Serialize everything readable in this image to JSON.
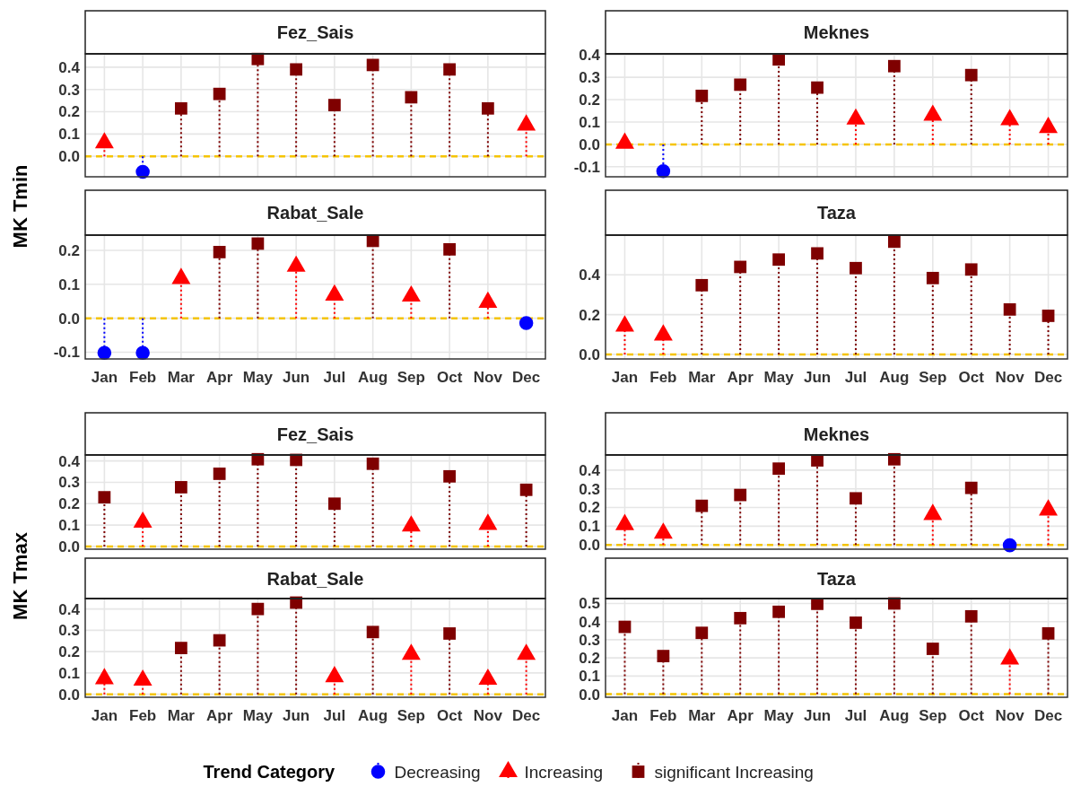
{
  "chart_data": [
    {
      "type": "lollipop",
      "title": "Fez_Sais",
      "ylabel": "MK Tmin",
      "categories": [
        null,
        null,
        null,
        null,
        null,
        null,
        null,
        null,
        null,
        null,
        null,
        null
      ],
      "ylim": [
        -0.092,
        0.46
      ],
      "yticks": [
        {
          "value": 0,
          "label": "0.0"
        },
        {
          "value": 0.1,
          "label": "0.1"
        },
        {
          "value": 0.2,
          "label": "0.2"
        },
        {
          "value": 0.3,
          "label": "0.3"
        },
        {
          "value": 0.4,
          "label": "0.4"
        }
      ],
      "grid": true,
      "line_style": "dotted",
      "legend": "bottom",
      "legend_title": "Trend Category",
      "ref_lines": [
        {
          "axis": "y",
          "value": 0,
          "color": "#f5c400",
          "line_style": "dashed"
        }
      ],
      "series": [
        {
          "name": "Decreasing",
          "color": "#0000ff",
          "marker": "circle",
          "values": [
            null,
            -0.07,
            null,
            null,
            null,
            null,
            null,
            null,
            null,
            null,
            null,
            null
          ]
        },
        {
          "name": "Increasing",
          "color": "#ff0000",
          "marker": "triangle",
          "values": [
            0.06,
            null,
            null,
            null,
            null,
            null,
            null,
            null,
            null,
            null,
            null,
            0.14
          ]
        },
        {
          "name": "significant Increasing",
          "color": "#7f0000",
          "marker": "square",
          "values": [
            null,
            null,
            0.215,
            0.28,
            0.437,
            0.39,
            0.23,
            0.41,
            0.265,
            0.39,
            0.215,
            null
          ]
        }
      ]
    },
    {
      "type": "lollipop",
      "title": "Meknes",
      "categories": [
        null,
        null,
        null,
        null,
        null,
        null,
        null,
        null,
        null,
        null,
        null,
        null
      ],
      "ylim": [
        -0.145,
        0.405
      ],
      "yticks": [
        {
          "value": -0.1,
          "label": "-0.1"
        },
        {
          "value": 0,
          "label": "0.0"
        },
        {
          "value": 0.1,
          "label": "0.1"
        },
        {
          "value": 0.2,
          "label": "0.2"
        },
        {
          "value": 0.3,
          "label": "0.3"
        },
        {
          "value": 0.4,
          "label": "0.4"
        }
      ],
      "grid": true,
      "line_style": "dotted",
      "ref_lines": [
        {
          "axis": "y",
          "value": 0,
          "color": "#f5c400",
          "line_style": "dashed"
        }
      ],
      "series": [
        {
          "name": "Decreasing",
          "color": "#0000ff",
          "marker": "circle",
          "values": [
            null,
            -0.12,
            null,
            null,
            null,
            null,
            null,
            null,
            null,
            null,
            null,
            null
          ]
        },
        {
          "name": "Increasing",
          "color": "#ff0000",
          "marker": "triangle",
          "values": [
            0.005,
            null,
            null,
            null,
            null,
            null,
            0.113,
            null,
            0.13,
            null,
            0.11,
            0.075
          ]
        },
        {
          "name": "significant Increasing",
          "color": "#7f0000",
          "marker": "square",
          "values": [
            null,
            null,
            0.217,
            0.267,
            0.38,
            0.254,
            null,
            0.35,
            null,
            0.31,
            null,
            null
          ]
        }
      ]
    },
    {
      "type": "lollipop",
      "title": "Rabat_Sale",
      "categories": [
        "Jan",
        "Feb",
        "Mar",
        "Apr",
        "May",
        "Jun",
        "Jul",
        "Aug",
        "Sep",
        "Oct",
        "Nov",
        "Dec"
      ],
      "ylim": [
        -0.12,
        0.245
      ],
      "yticks": [
        {
          "value": -0.1,
          "label": "-0.1"
        },
        {
          "value": 0,
          "label": "0.0"
        },
        {
          "value": 0.1,
          "label": "0.1"
        },
        {
          "value": 0.2,
          "label": "0.2"
        }
      ],
      "grid": true,
      "line_style": "dotted",
      "ref_lines": [
        {
          "axis": "y",
          "value": 0,
          "color": "#f5c400",
          "line_style": "dashed"
        }
      ],
      "series": [
        {
          "name": "Decreasing",
          "color": "#0000ff",
          "marker": "circle",
          "values": [
            -0.102,
            -0.102,
            null,
            null,
            null,
            null,
            null,
            null,
            null,
            null,
            null,
            -0.014
          ]
        },
        {
          "name": "Increasing",
          "color": "#ff0000",
          "marker": "triangle",
          "values": [
            null,
            null,
            0.117,
            null,
            null,
            0.153,
            0.068,
            null,
            0.065,
            null,
            0.047,
            null
          ]
        },
        {
          "name": "significant Increasing",
          "color": "#7f0000",
          "marker": "square",
          "values": [
            null,
            null,
            null,
            0.195,
            0.22,
            null,
            null,
            0.228,
            null,
            0.203,
            null,
            null
          ]
        }
      ]
    },
    {
      "type": "lollipop",
      "title": "Taza",
      "categories": [
        "Jan",
        "Feb",
        "Mar",
        "Apr",
        "May",
        "Jun",
        "Jul",
        "Aug",
        "Sep",
        "Oct",
        "Nov",
        "Dec"
      ],
      "ylim": [
        -0.023,
        0.6
      ],
      "yticks": [
        {
          "value": 0,
          "label": "0.0"
        },
        {
          "value": 0.2,
          "label": "0.2"
        },
        {
          "value": 0.4,
          "label": "0.4"
        }
      ],
      "grid": true,
      "line_style": "dotted",
      "ref_lines": [
        {
          "axis": "y",
          "value": 0,
          "color": "#f5c400",
          "line_style": "dashed"
        }
      ],
      "series": [
        {
          "name": "Increasing",
          "color": "#ff0000",
          "marker": "triangle",
          "values": [
            0.142,
            0.097,
            null,
            null,
            null,
            null,
            null,
            null,
            null,
            null,
            null,
            null
          ]
        },
        {
          "name": "significant Increasing",
          "color": "#7f0000",
          "marker": "square",
          "values": [
            null,
            null,
            0.348,
            0.44,
            0.477,
            0.508,
            0.434,
            0.567,
            0.384,
            0.427,
            0.226,
            0.194
          ]
        }
      ]
    },
    {
      "type": "lollipop",
      "title": "Fez_Sais",
      "ylabel": "MK Tmax",
      "categories": [
        null,
        null,
        null,
        null,
        null,
        null,
        null,
        null,
        null,
        null,
        null,
        null
      ],
      "ylim": [
        -0.013,
        0.428
      ],
      "yticks": [
        {
          "value": 0,
          "label": "0.0"
        },
        {
          "value": 0.1,
          "label": "0.1"
        },
        {
          "value": 0.2,
          "label": "0.2"
        },
        {
          "value": 0.3,
          "label": "0.3"
        },
        {
          "value": 0.4,
          "label": "0.4"
        }
      ],
      "grid": true,
      "line_style": "dotted",
      "ref_lines": [
        {
          "axis": "y",
          "value": 0,
          "color": "#f5c400",
          "line_style": "dashed"
        }
      ],
      "series": [
        {
          "name": "Increasing",
          "color": "#ff0000",
          "marker": "triangle",
          "values": [
            null,
            0.113,
            null,
            null,
            null,
            null,
            null,
            null,
            0.095,
            null,
            0.103,
            null
          ]
        },
        {
          "name": "significant Increasing",
          "color": "#7f0000",
          "marker": "square",
          "values": [
            0.23,
            null,
            0.277,
            0.34,
            0.408,
            0.405,
            0.2,
            0.387,
            null,
            0.328,
            null,
            0.265
          ]
        }
      ]
    },
    {
      "type": "lollipop",
      "title": "Meknes",
      "categories": [
        null,
        null,
        null,
        null,
        null,
        null,
        null,
        null,
        null,
        null,
        null,
        null
      ],
      "ylim": [
        -0.023,
        0.481
      ],
      "yticks": [
        {
          "value": 0,
          "label": "0.0"
        },
        {
          "value": 0.1,
          "label": "0.1"
        },
        {
          "value": 0.2,
          "label": "0.2"
        },
        {
          "value": 0.3,
          "label": "0.3"
        },
        {
          "value": 0.4,
          "label": "0.4"
        }
      ],
      "grid": true,
      "line_style": "dotted",
      "ref_lines": [
        {
          "axis": "y",
          "value": 0,
          "color": "#f5c400",
          "line_style": "dashed"
        }
      ],
      "series": [
        {
          "name": "Decreasing",
          "color": "#0000ff",
          "marker": "circle",
          "values": [
            null,
            null,
            null,
            null,
            null,
            null,
            null,
            null,
            null,
            null,
            -0.002,
            null
          ]
        },
        {
          "name": "Increasing",
          "color": "#ff0000",
          "marker": "triangle",
          "values": [
            0.108,
            0.062,
            null,
            null,
            null,
            null,
            null,
            null,
            0.162,
            null,
            null,
            0.186
          ]
        },
        {
          "name": "significant Increasing",
          "color": "#7f0000",
          "marker": "square",
          "values": [
            null,
            null,
            0.209,
            0.267,
            0.408,
            0.452,
            0.249,
            0.458,
            null,
            0.305,
            null,
            null
          ]
        }
      ]
    },
    {
      "type": "lollipop",
      "title": "Rabat_Sale",
      "categories": [
        "Jan",
        "Feb",
        "Mar",
        "Apr",
        "May",
        "Jun",
        "Jul",
        "Aug",
        "Sep",
        "Oct",
        "Nov",
        "Dec"
      ],
      "ylim": [
        -0.014,
        0.449
      ],
      "yticks": [
        {
          "value": 0,
          "label": "0.0"
        },
        {
          "value": 0.1,
          "label": "0.1"
        },
        {
          "value": 0.2,
          "label": "0.2"
        },
        {
          "value": 0.3,
          "label": "0.3"
        },
        {
          "value": 0.4,
          "label": "0.4"
        }
      ],
      "grid": true,
      "line_style": "dotted",
      "ref_lines": [
        {
          "axis": "y",
          "value": 0,
          "color": "#f5c400",
          "line_style": "dashed"
        }
      ],
      "series": [
        {
          "name": "Increasing",
          "color": "#ff0000",
          "marker": "triangle",
          "values": [
            0.073,
            0.066,
            null,
            null,
            null,
            null,
            0.082,
            null,
            0.187,
            null,
            0.07,
            0.187
          ]
        },
        {
          "name": "significant Increasing",
          "color": "#7f0000",
          "marker": "square",
          "values": [
            null,
            null,
            0.217,
            0.253,
            0.4,
            0.43,
            null,
            0.292,
            null,
            0.285,
            null,
            null
          ]
        }
      ]
    },
    {
      "type": "lollipop",
      "title": "Taza",
      "categories": [
        "Jan",
        "Feb",
        "Mar",
        "Apr",
        "May",
        "Jun",
        "Jul",
        "Aug",
        "Sep",
        "Oct",
        "Nov",
        "Dec"
      ],
      "ylim": [
        -0.017,
        0.527
      ],
      "yticks": [
        {
          "value": 0,
          "label": "0.0"
        },
        {
          "value": 0.1,
          "label": "0.1"
        },
        {
          "value": 0.2,
          "label": "0.2"
        },
        {
          "value": 0.3,
          "label": "0.3"
        },
        {
          "value": 0.4,
          "label": "0.4"
        },
        {
          "value": 0.5,
          "label": "0.5"
        }
      ],
      "grid": true,
      "line_style": "dotted",
      "ref_lines": [
        {
          "axis": "y",
          "value": 0,
          "color": "#f5c400",
          "line_style": "dashed"
        }
      ],
      "series": [
        {
          "name": "Increasing",
          "color": "#ff0000",
          "marker": "triangle",
          "values": [
            null,
            null,
            null,
            null,
            null,
            null,
            null,
            null,
            null,
            null,
            0.194,
            null
          ]
        },
        {
          "name": "significant Increasing",
          "color": "#7f0000",
          "marker": "square",
          "values": [
            0.371,
            0.21,
            0.338,
            0.419,
            0.454,
            0.498,
            0.394,
            0.5,
            0.25,
            0.429,
            null,
            0.335
          ]
        }
      ]
    }
  ]
}
